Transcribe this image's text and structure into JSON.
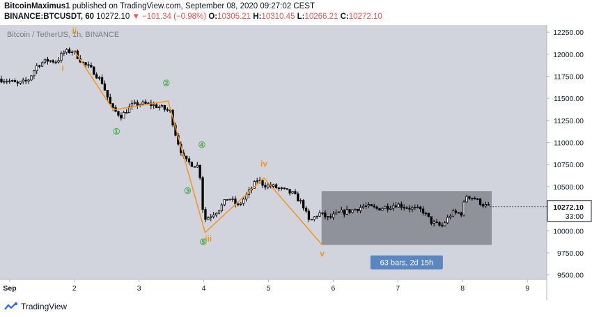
{
  "header": {
    "publisher": "BitcoinMaximus1",
    "published_text": " published on TradingView.com, September 08, 2020 09:27:02 CEST",
    "symbol": "BINANCE:BTCUSDT, 60",
    "last": "10272.10",
    "change": "−101.34 (−0.98%)",
    "o_label": "O:",
    "o_val": "10305.21",
    "h_label": "H:",
    "h_val": "10310.45",
    "l_label": "L:",
    "l_val": "10266.21",
    "c_label": "C:",
    "c_val": "10272.10"
  },
  "footer": {
    "brand": "TradingView"
  },
  "chart_data": {
    "type": "candlestick",
    "title": "Bitcoin / TetherUS, 1h, BINANCE",
    "x_ticks": [
      "Sep",
      "2",
      "3",
      "4",
      "5",
      "6",
      "7",
      "8",
      "9"
    ],
    "y_ticks": [
      "12250.00",
      "12000.00",
      "11750.00",
      "11500.00",
      "11250.00",
      "11000.00",
      "10750.00",
      "10500.00",
      "10250.00",
      "10000.00",
      "9750.00",
      "9500.00"
    ],
    "ylim": [
      9450,
      12330
    ],
    "xlim": [
      0.85,
      9.3
    ],
    "last_price": "10272.10",
    "countdown": "33:00",
    "price_path": [
      [
        0.85,
        11720
      ],
      [
        1.0,
        11700
      ],
      [
        1.15,
        11660
      ],
      [
        1.3,
        11700
      ],
      [
        1.45,
        11880
      ],
      [
        1.6,
        11930
      ],
      [
        1.75,
        11920
      ],
      [
        1.85,
        12020
      ],
      [
        2.0,
        12040
      ],
      [
        2.15,
        11900
      ],
      [
        2.3,
        11820
      ],
      [
        2.45,
        11680
      ],
      [
        2.6,
        11380
      ],
      [
        2.75,
        11300
      ],
      [
        2.9,
        11420
      ],
      [
        3.05,
        11440
      ],
      [
        3.2,
        11430
      ],
      [
        3.35,
        11400
      ],
      [
        3.5,
        11350
      ],
      [
        3.6,
        11050
      ],
      [
        3.72,
        10800
      ],
      [
        3.85,
        10750
      ],
      [
        3.95,
        10730
      ],
      [
        4.02,
        10120
      ],
      [
        4.1,
        10160
      ],
      [
        4.25,
        10240
      ],
      [
        4.4,
        10380
      ],
      [
        4.55,
        10280
      ],
      [
        4.7,
        10420
      ],
      [
        4.85,
        10580
      ],
      [
        4.95,
        10520
      ],
      [
        5.1,
        10500
      ],
      [
        5.25,
        10460
      ],
      [
        5.4,
        10420
      ],
      [
        5.55,
        10300
      ],
      [
        5.65,
        10100
      ],
      [
        5.8,
        10200
      ],
      [
        5.95,
        10140
      ],
      [
        6.1,
        10200
      ],
      [
        6.3,
        10230
      ],
      [
        6.5,
        10280
      ],
      [
        6.7,
        10250
      ],
      [
        6.9,
        10280
      ],
      [
        7.0,
        10300
      ],
      [
        7.2,
        10260
      ],
      [
        7.4,
        10230
      ],
      [
        7.55,
        10090
      ],
      [
        7.7,
        10050
      ],
      [
        7.85,
        10200
      ],
      [
        8.0,
        10200
      ],
      [
        8.08,
        10400
      ],
      [
        8.2,
        10370
      ],
      [
        8.35,
        10290
      ],
      [
        8.42,
        10272
      ]
    ],
    "wave_path": [
      [
        2.0,
        12040
      ],
      [
        2.6,
        11370
      ],
      [
        3.45,
        11470
      ],
      [
        4.02,
        9980
      ],
      [
        4.93,
        10600
      ],
      [
        5.83,
        9840
      ]
    ],
    "wave_labels": [
      {
        "label": "i",
        "x": 1.82,
        "y": 11810,
        "color": "#f7931a"
      },
      {
        "label": "ii",
        "x": 2.0,
        "y": 12230,
        "color": "#f7931a"
      },
      {
        "label": "iii",
        "x": 4.07,
        "y": 9880,
        "color": "#f7931a"
      },
      {
        "label": "iv",
        "x": 4.93,
        "y": 10730,
        "color": "#f7931a"
      },
      {
        "label": "v",
        "x": 5.83,
        "y": 9710,
        "color": "#f7931a"
      },
      {
        "label": "①",
        "x": 2.65,
        "y": 11090,
        "color": "#4caf50"
      },
      {
        "label": "②",
        "x": 3.42,
        "y": 11640,
        "color": "#4caf50"
      },
      {
        "label": "③",
        "x": 3.75,
        "y": 10420,
        "color": "#4caf50"
      },
      {
        "label": "④",
        "x": 3.97,
        "y": 10940,
        "color": "#4caf50"
      },
      {
        "label": "⑤",
        "x": 3.99,
        "y": 9840,
        "color": "#4caf50"
      }
    ],
    "range_box": {
      "x_start": 5.82,
      "x_end": 8.45,
      "y_low": 9840,
      "y_high": 10450,
      "color": "#787b86"
    },
    "range_label": "63 bars, 2d 15h",
    "colors": {
      "bg": "#d1d4dc",
      "up": "#ffffff",
      "down": "#000000",
      "wave": "#f7931a",
      "axis_text": "#131722"
    }
  }
}
